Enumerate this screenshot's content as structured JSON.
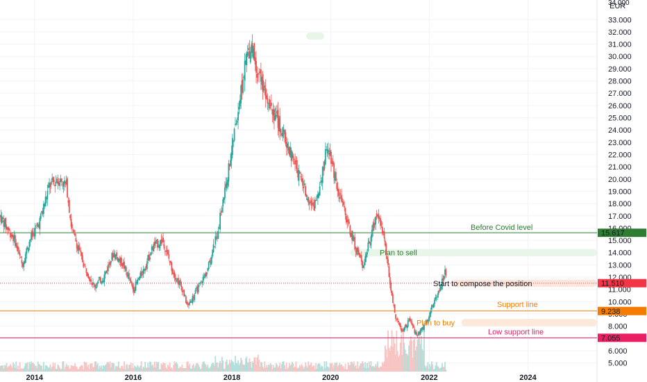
{
  "header": {
    "currency": "EUR",
    "top_tick_partial": "34.000"
  },
  "colors": {
    "up": "#26a69a",
    "down": "#ef5350",
    "volume_up": "#b2dfdb",
    "volume_down": "#f7c5c3",
    "before_covid": "#2e7d32",
    "support": "#f57c00",
    "low_support": "#e91e63",
    "current": "#f23645"
  },
  "chart_data": {
    "type": "candlestick",
    "currency": "EUR",
    "x": {
      "labels": [
        "2014",
        "2016",
        "2018",
        "2020",
        "2022",
        "2024"
      ],
      "range": [
        2013.3,
        2025.4
      ]
    },
    "y": {
      "ticks": [
        "5.000",
        "6.000",
        "7.000",
        "8.000",
        "9.000",
        "10.000",
        "11.000",
        "12.000",
        "13.000",
        "14.000",
        "15.000",
        "16.000",
        "17.000",
        "18.000",
        "19.000",
        "20.000",
        "21.000",
        "22.000",
        "23.000",
        "24.000",
        "25.000",
        "26.000",
        "27.000",
        "28.000",
        "29.000",
        "30.000",
        "31.000",
        "32.000",
        "33.000"
      ],
      "range": [
        4.3,
        34.6
      ],
      "grid": true
    },
    "price_path": [
      [
        2013.3,
        17.0
      ],
      [
        2013.6,
        15.0
      ],
      [
        2013.75,
        13.0
      ],
      [
        2013.9,
        15.0
      ],
      [
        2014.1,
        16.5
      ],
      [
        2014.3,
        19.5
      ],
      [
        2014.5,
        20.0
      ],
      [
        2014.65,
        19.5
      ],
      [
        2014.75,
        16.0
      ],
      [
        2015.0,
        13.0
      ],
      [
        2015.2,
        11.3
      ],
      [
        2015.4,
        12.0
      ],
      [
        2015.6,
        14.0
      ],
      [
        2015.8,
        13.0
      ],
      [
        2016.0,
        11.0
      ],
      [
        2016.2,
        12.5
      ],
      [
        2016.4,
        14.5
      ],
      [
        2016.6,
        15.0
      ],
      [
        2016.8,
        12.5
      ],
      [
        2017.0,
        11.0
      ],
      [
        2017.1,
        9.6
      ],
      [
        2017.3,
        11.0
      ],
      [
        2017.5,
        12.5
      ],
      [
        2017.7,
        15.5
      ],
      [
        2017.9,
        20.0
      ],
      [
        2018.1,
        25.0
      ],
      [
        2018.3,
        30.0
      ],
      [
        2018.4,
        31.0
      ],
      [
        2018.5,
        29.0
      ],
      [
        2018.7,
        27.0
      ],
      [
        2018.9,
        25.0
      ],
      [
        2019.1,
        23.0
      ],
      [
        2019.3,
        21.0
      ],
      [
        2019.5,
        19.0
      ],
      [
        2019.65,
        17.5
      ],
      [
        2019.8,
        20.0
      ],
      [
        2019.95,
        23.0
      ],
      [
        2020.1,
        20.0
      ],
      [
        2020.3,
        17.0
      ],
      [
        2020.5,
        14.5
      ],
      [
        2020.65,
        13.0
      ],
      [
        2020.8,
        15.0
      ],
      [
        2020.95,
        17.5
      ],
      [
        2021.1,
        15.0
      ],
      [
        2021.2,
        11.5
      ],
      [
        2021.3,
        9.0
      ],
      [
        2021.45,
        7.5
      ],
      [
        2021.6,
        8.5
      ],
      [
        2021.75,
        7.2
      ],
      [
        2021.9,
        8.0
      ],
      [
        2022.1,
        10.0
      ],
      [
        2022.25,
        11.5
      ],
      [
        2022.32,
        12.5
      ],
      [
        2022.35,
        11.6
      ]
    ],
    "last_price": 11.51,
    "levels": [
      {
        "name": "before_covid",
        "label": "Before Covid level",
        "value": 15.617,
        "value_label": "15.617"
      },
      {
        "name": "support",
        "label": "Support line",
        "value": 9.238,
        "value_label": "9.238"
      },
      {
        "name": "low_support",
        "label": "Low support line",
        "value": 7.055,
        "value_label": "7.055"
      }
    ],
    "current_price_label": "11.510",
    "zones": [
      {
        "name": "plan_to_sell",
        "label": "Plan to sell",
        "y_from": 13.7,
        "y_to": 14.3,
        "x_from": 2020.4
      },
      {
        "name": "start_position",
        "label": "Start to compose the position",
        "y_from": 11.2,
        "y_to": 11.8,
        "x_from": 2022.45
      },
      {
        "name": "plan_to_buy",
        "label": "Plan to buy",
        "y_from": 8.0,
        "y_to": 8.6,
        "x_from": 2022.65
      }
    ]
  }
}
